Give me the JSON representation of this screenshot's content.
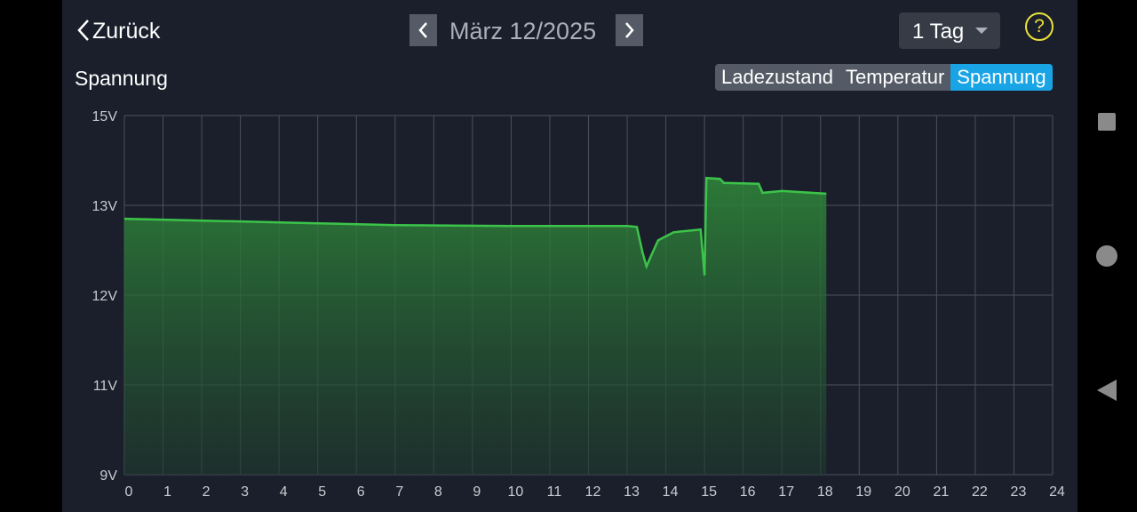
{
  "header": {
    "back": "Zurück",
    "date": "März 12/2025",
    "range": "1 Tag",
    "help": "?"
  },
  "tabs": [
    "Ladezustand",
    "Temperatur",
    "Spannung"
  ],
  "active_tab": 2,
  "chart_data": {
    "type": "area",
    "title": "Spannung",
    "color": "#3cc44a",
    "x": [
      0,
      1,
      3,
      5,
      7,
      10,
      13,
      13.25,
      13.4,
      13.5,
      13.6,
      13.8,
      14.2,
      14.9,
      15.0,
      15.05,
      15.4,
      15.5,
      16.4,
      16.5,
      17.0,
      18.15
    ],
    "values": [
      12.85,
      12.84,
      12.82,
      12.8,
      12.78,
      12.77,
      12.77,
      12.76,
      12.47,
      12.32,
      12.42,
      12.61,
      12.7,
      12.73,
      12.22,
      13.61,
      13.59,
      13.5,
      13.48,
      13.28,
      13.32,
      13.26
    ],
    "xlim": [
      0,
      24
    ],
    "xticks": [
      0,
      1,
      2,
      3,
      4,
      5,
      6,
      7,
      8,
      9,
      10,
      11,
      12,
      13,
      14,
      15,
      16,
      17,
      18,
      19,
      20,
      21,
      22,
      23,
      24
    ],
    "ylim": [
      9,
      15
    ],
    "yticks": [
      {
        "value": 9,
        "label": "9V"
      },
      {
        "value": 11,
        "label": "11V"
      },
      {
        "value": 12,
        "label": "12V"
      },
      {
        "value": 13,
        "label": "13V"
      },
      {
        "value": 15,
        "label": "15V"
      }
    ],
    "grid": true
  }
}
